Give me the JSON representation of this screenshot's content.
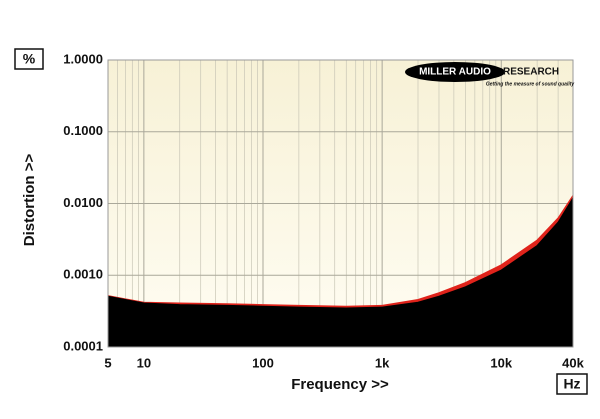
{
  "chart_data": {
    "type": "area",
    "y_label": "Distortion >>",
    "x_label": "Frequency >>",
    "y_unit": "%",
    "x_unit": "Hz",
    "annotations": [
      "MILLER AUDIO",
      "RESEARCH",
      "Getting the measure of sound quality"
    ],
    "log_x": true,
    "log_y": true,
    "grid": true,
    "xlim": [
      5,
      40000
    ],
    "ylim": [
      0.0001,
      1
    ],
    "xticks": [
      5,
      10,
      100,
      {
        "value": 1000,
        "label": "1k"
      },
      {
        "value": 10000,
        "label": "10k"
      },
      {
        "value": 40000,
        "label": "40k"
      }
    ],
    "yticks": [
      {
        "value": 1,
        "label": "1.0000"
      },
      {
        "value": 0.1,
        "label": "0.1000"
      },
      {
        "value": 0.01,
        "label": "0.0100"
      },
      {
        "value": 0.001,
        "label": "0.0010"
      },
      {
        "value": 0.0001,
        "label": "0.0001"
      }
    ],
    "x": [
      5,
      10,
      20,
      50,
      100,
      200,
      500,
      1000,
      2000,
      3000,
      5000,
      10000,
      20000,
      30000,
      40000
    ],
    "series": [
      {
        "color": "#e0231b",
        "values": [
          0.00052,
          0.00042,
          0.00041,
          0.0004,
          0.00039,
          0.00038,
          0.00037,
          0.00038,
          0.00046,
          0.00057,
          0.00079,
          0.0014,
          0.0031,
          0.0063,
          0.013
        ]
      },
      {
        "color": "#000000",
        "values": [
          0.00051,
          0.00041,
          0.00039,
          0.00038,
          0.00037,
          0.00036,
          0.00035,
          0.00036,
          0.00042,
          0.00051,
          0.00069,
          0.00118,
          0.0026,
          0.0055,
          0.012
        ]
      }
    ]
  }
}
